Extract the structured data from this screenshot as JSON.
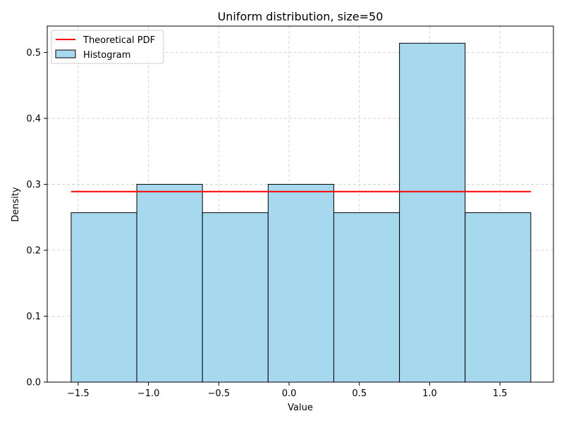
{
  "chart_data": {
    "type": "bar",
    "title": "Uniform distribution, size=50",
    "xlabel": "Value",
    "ylabel": "Density",
    "xlim": [
      -1.72,
      1.88
    ],
    "ylim": [
      0.0,
      0.54
    ],
    "xticks": [
      -1.5,
      -1.0,
      -0.5,
      0.0,
      0.5,
      1.0,
      1.5
    ],
    "xtick_labels": [
      "−1.5",
      "−1.0",
      "−0.5",
      "0.0",
      "0.5",
      "1.0",
      "1.5"
    ],
    "yticks": [
      0.0,
      0.1,
      0.2,
      0.3,
      0.4,
      0.5
    ],
    "ytick_labels": [
      "0.0",
      "0.1",
      "0.2",
      "0.3",
      "0.4",
      "0.5"
    ],
    "grid": true,
    "legend_position": "top-left",
    "histogram": {
      "name": "Histogram",
      "color": "#a6d8ee",
      "edge_color": "#000000",
      "bin_edges": [
        -1.55,
        -1.083,
        -0.616,
        -0.149,
        0.318,
        0.785,
        1.252,
        1.719
      ],
      "values": [
        0.257,
        0.3,
        0.257,
        0.3,
        0.257,
        0.514,
        0.257
      ]
    },
    "pdf_line": {
      "name": "Theoretical PDF",
      "color": "#ff0000",
      "x": [
        -1.55,
        1.72
      ],
      "y": [
        0.289,
        0.289
      ]
    }
  }
}
